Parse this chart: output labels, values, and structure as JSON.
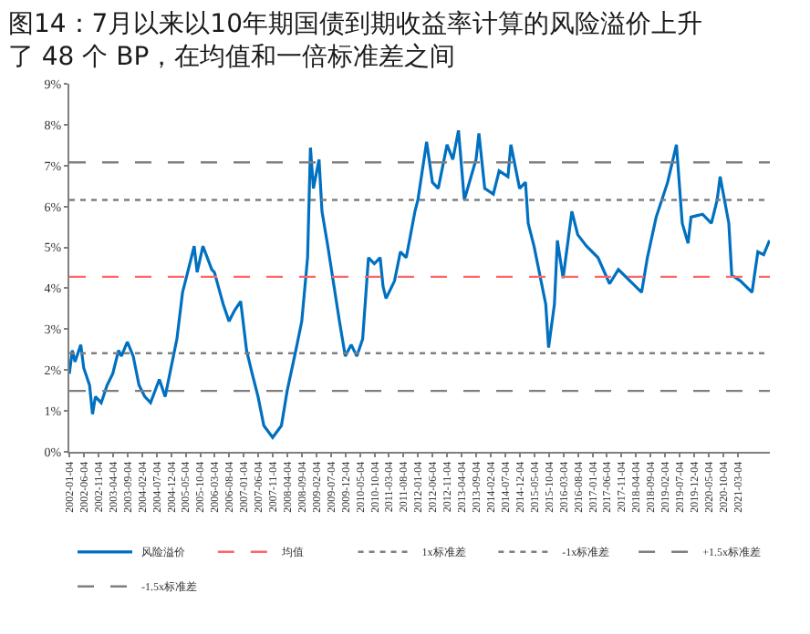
{
  "chart_data": {
    "type": "line",
    "title": "图14：7月以来以10年期国债到期收益率计算的风险溢价上升了 48 个 BP，在均值和一倍标准差之间",
    "x": [
      "2002-01",
      "2002-02",
      "2002-03",
      "2002-05",
      "2002-06",
      "2002-08",
      "2002-09",
      "2002-10",
      "2002-12",
      "2003-02",
      "2003-04",
      "2003-06",
      "2003-07",
      "2003-09",
      "2003-11",
      "2004-01",
      "2004-03",
      "2004-05",
      "2004-08",
      "2004-10",
      "2004-12",
      "2005-02",
      "2005-04",
      "2005-06",
      "2005-08",
      "2005-09",
      "2005-11",
      "2006-02",
      "2006-03",
      "2006-06",
      "2006-08",
      "2006-10",
      "2006-12",
      "2007-02",
      "2007-04",
      "2007-06",
      "2007-08",
      "2007-11",
      "2008-02",
      "2008-04",
      "2008-07",
      "2008-09",
      "2008-11",
      "2008-12",
      "2009-01",
      "2009-03",
      "2009-04",
      "2009-06",
      "2009-10",
      "2009-12",
      "2010-02",
      "2010-04",
      "2010-06",
      "2010-08",
      "2010-10",
      "2010-12",
      "2011-01",
      "2011-02",
      "2011-05",
      "2011-07",
      "2011-09",
      "2011-12",
      "2012-01",
      "2012-04",
      "2012-06",
      "2012-08",
      "2012-11",
      "2013-01",
      "2013-03",
      "2013-05",
      "2013-09",
      "2013-10",
      "2013-12",
      "2014-03",
      "2014-05",
      "2014-08",
      "2014-09",
      "2014-12",
      "2015-02",
      "2015-03",
      "2015-05",
      "2015-09",
      "2015-10",
      "2015-12",
      "2016-01",
      "2016-03",
      "2016-06",
      "2016-08",
      "2016-11",
      "2017-03",
      "2017-07",
      "2017-10",
      "2018-04",
      "2018-06",
      "2018-08",
      "2018-11",
      "2019-03",
      "2019-06",
      "2019-08",
      "2019-10",
      "2019-11",
      "2020-03",
      "2020-06",
      "2020-08",
      "2020-09",
      "2020-12",
      "2021-01",
      "2021-04",
      "2021-08",
      "2021-10",
      "2021-12",
      "2022-02"
    ],
    "series": [
      {
        "name": "风险溢价",
        "color": "#0070c0",
        "values": [
          1.91,
          2.48,
          2.2,
          2.62,
          2.05,
          1.63,
          0.92,
          1.35,
          1.2,
          1.63,
          1.91,
          2.48,
          2.34,
          2.69,
          2.34,
          1.63,
          1.35,
          1.2,
          1.77,
          1.35,
          2.05,
          2.76,
          3.9,
          4.46,
          5.03,
          4.39,
          5.03,
          4.46,
          4.39,
          3.61,
          3.19,
          3.47,
          3.68,
          2.48,
          1.91,
          1.35,
          0.64,
          0.35,
          0.64,
          1.49,
          2.48,
          3.19,
          4.75,
          7.44,
          6.44,
          7.15,
          5.88,
          5.03,
          3.19,
          2.34,
          2.62,
          2.34,
          2.76,
          4.75,
          4.6,
          4.75,
          4.04,
          3.75,
          4.18,
          4.89,
          4.75,
          5.88,
          6.16,
          7.58,
          6.59,
          6.44,
          7.51,
          7.15,
          7.86,
          6.16,
          7.15,
          7.79,
          6.44,
          6.3,
          6.87,
          6.73,
          7.51,
          6.44,
          6.59,
          5.59,
          5.03,
          3.61,
          2.55,
          3.61,
          5.17,
          4.25,
          5.88,
          5.31,
          5.03,
          4.75,
          4.11,
          4.46,
          4.04,
          3.9,
          4.75,
          5.74,
          6.59,
          7.51,
          5.59,
          5.1,
          5.74,
          5.81,
          5.59,
          6.16,
          6.73,
          5.59,
          4.32,
          4.18,
          3.9,
          4.89,
          4.82,
          5.17
        ]
      }
    ],
    "ref_lines": [
      {
        "axis": "y",
        "value": 4.28,
        "label": "均值",
        "color": "#ff6666",
        "line_style": "dashed"
      },
      {
        "axis": "y",
        "value": 6.16,
        "label": "1x标准差",
        "color": "#7f7f7f",
        "line_style": "dotted"
      },
      {
        "axis": "y",
        "value": 2.41,
        "label": "-1x标准差",
        "color": "#7f7f7f",
        "line_style": "dotted"
      },
      {
        "axis": "y",
        "value": 7.08,
        "label": "+1.5x标准差",
        "color": "#7f7f7f",
        "line_style": "dashed"
      },
      {
        "axis": "y",
        "value": 1.49,
        "label": "-1.5x标准差",
        "color": "#7f7f7f",
        "line_style": "dashed"
      }
    ],
    "xlim": [
      "2002-01-01",
      "2022-02-04"
    ],
    "xticks": [
      "2002-01-04",
      "2002-06-04",
      "2002-11-04",
      "2003-04-04",
      "2003-09-04",
      "2004-02-04",
      "2004-07-04",
      "2004-12-04",
      "2005-05-04",
      "2005-10-04",
      "2006-03-04",
      "2006-08-04",
      "2007-01-04",
      "2007-06-04",
      "2007-11-04",
      "2008-04-04",
      "2008-09-04",
      "2009-02-04",
      "2009-07-04",
      "2009-12-04",
      "2010-05-04",
      "2010-10-04",
      "2011-03-04",
      "2011-08-04",
      "2012-01-04",
      "2012-06-04",
      "2012-11-04",
      "2013-04-04",
      "2013-09-04",
      "2014-02-04",
      "2014-07-04",
      "2014-12-04",
      "2015-05-04",
      "2015-10-04",
      "2016-03-04",
      "2016-08-04",
      "2017-01-04",
      "2017-06-04",
      "2017-11-04",
      "2018-04-04",
      "2018-09-04",
      "2019-02-04",
      "2019-07-04",
      "2019-12-04",
      "2020-05-04",
      "2020-10-04",
      "2021-03-04"
    ],
    "ylim": [
      0,
      9
    ],
    "yticks": [
      {
        "value": 0,
        "label": "0%"
      },
      {
        "value": 1,
        "label": "1%"
      },
      {
        "value": 2,
        "label": "2%"
      },
      {
        "value": 3,
        "label": "3%"
      },
      {
        "value": 4,
        "label": "4%"
      },
      {
        "value": 5,
        "label": "5%"
      },
      {
        "value": 6,
        "label": "6%"
      },
      {
        "value": 7,
        "label": "7%"
      },
      {
        "value": 8,
        "label": "8%"
      },
      {
        "value": 9,
        "label": "9%"
      }
    ],
    "legend": "bottom",
    "marker": "none",
    "line_style": "solid"
  }
}
